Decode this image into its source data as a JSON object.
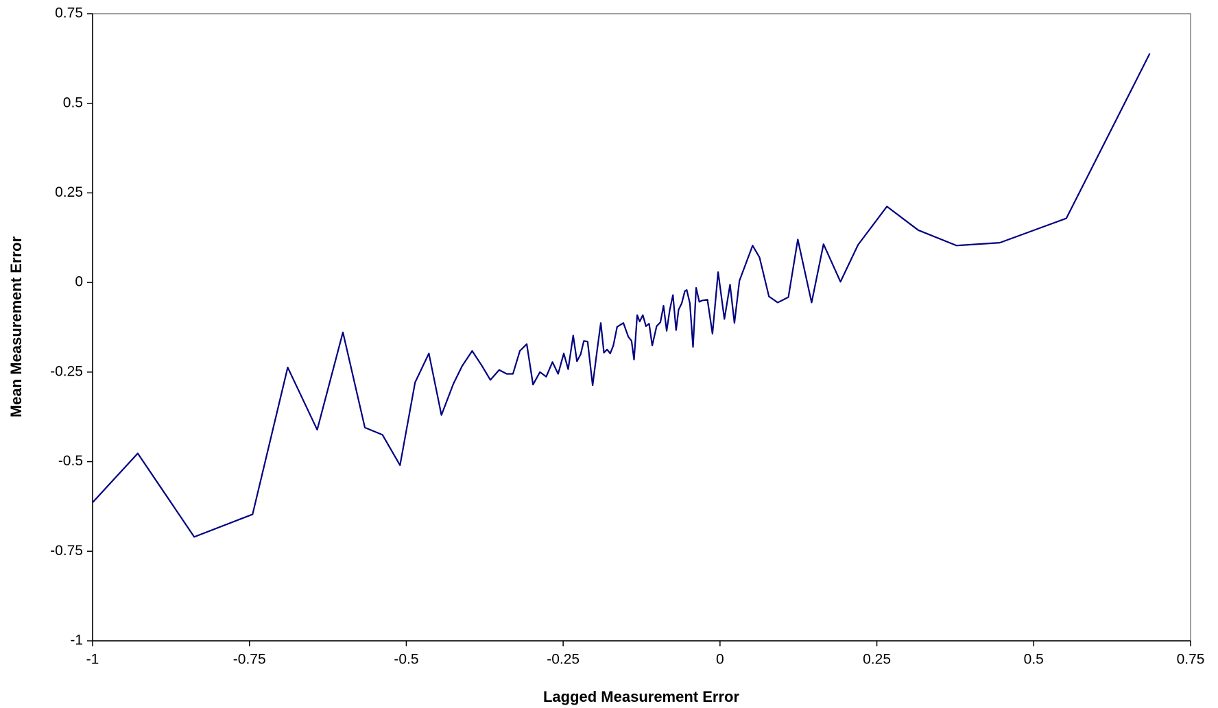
{
  "chart_data": {
    "type": "line",
    "x_label": "Lagged Measurement Error",
    "y_label": "Mean Measurement Error",
    "xlim": [
      -1,
      0.75
    ],
    "ylim": [
      -1,
      0.75
    ],
    "xticks": [
      -1,
      -0.75,
      -0.5,
      -0.25,
      0,
      0.25,
      0.5,
      0.75
    ],
    "yticks": [
      -1,
      -0.75,
      -0.5,
      -0.25,
      0,
      0.25,
      0.5,
      0.75
    ],
    "grid": false,
    "series": [
      {
        "color": "#000080",
        "x": [
          -1,
          -0.928,
          -0.838,
          -0.745,
          -0.689,
          -0.642,
          -0.601,
          -0.566,
          -0.538,
          -0.51,
          -0.486,
          -0.464,
          -0.444,
          -0.425,
          -0.411,
          -0.395,
          -0.38,
          -0.366,
          -0.352,
          -0.34,
          -0.33,
          -0.319,
          -0.308,
          -0.298,
          -0.287,
          -0.277,
          -0.267,
          -0.258,
          -0.249,
          -0.242,
          -0.234,
          -0.228,
          -0.222,
          -0.217,
          -0.211,
          -0.203,
          -0.196,
          -0.19,
          -0.185,
          -0.18,
          -0.175,
          -0.17,
          -0.164,
          -0.154,
          -0.146,
          -0.141,
          -0.137,
          -0.132,
          -0.128,
          -0.123,
          -0.118,
          -0.113,
          -0.108,
          -0.101,
          -0.095,
          -0.09,
          -0.085,
          -0.08,
          -0.075,
          -0.07,
          -0.066,
          -0.061,
          -0.056,
          -0.053,
          -0.048,
          -0.043,
          -0.038,
          -0.033,
          -0.028,
          -0.02,
          -0.012,
          -0.003,
          0.007,
          0.016,
          0.023,
          0.031,
          0.052,
          0.063,
          0.078,
          0.092,
          0.109,
          0.124,
          0.146,
          0.165,
          0.192,
          0.22,
          0.266,
          0.316,
          0.377,
          0.446,
          0.552,
          0.685
        ],
        "values": [
          -0.614,
          -0.477,
          -0.71,
          -0.647,
          -0.237,
          -0.411,
          -0.139,
          -0.405,
          -0.425,
          -0.51,
          -0.279,
          -0.198,
          -0.37,
          -0.283,
          -0.233,
          -0.191,
          -0.231,
          -0.272,
          -0.244,
          -0.255,
          -0.255,
          -0.191,
          -0.172,
          -0.285,
          -0.25,
          -0.263,
          -0.222,
          -0.255,
          -0.198,
          -0.242,
          -0.148,
          -0.22,
          -0.2,
          -0.163,
          -0.165,
          -0.287,
          -0.191,
          -0.113,
          -0.196,
          -0.187,
          -0.198,
          -0.176,
          -0.124,
          -0.113,
          -0.152,
          -0.163,
          -0.215,
          -0.091,
          -0.109,
          -0.091,
          -0.122,
          -0.115,
          -0.176,
          -0.122,
          -0.111,
          -0.065,
          -0.135,
          -0.076,
          -0.035,
          -0.133,
          -0.076,
          -0.058,
          -0.024,
          -0.021,
          -0.058,
          -0.18,
          -0.015,
          -0.054,
          -0.05,
          -0.048,
          -0.143,
          0.029,
          -0.102,
          -0.006,
          -0.113,
          0.005,
          0.103,
          0.07,
          -0.039,
          -0.056,
          -0.041,
          0.12,
          -0.056,
          0.107,
          0.002,
          0.105,
          0.212,
          0.146,
          0.103,
          0.111,
          0.179,
          0.639
        ]
      }
    ]
  }
}
